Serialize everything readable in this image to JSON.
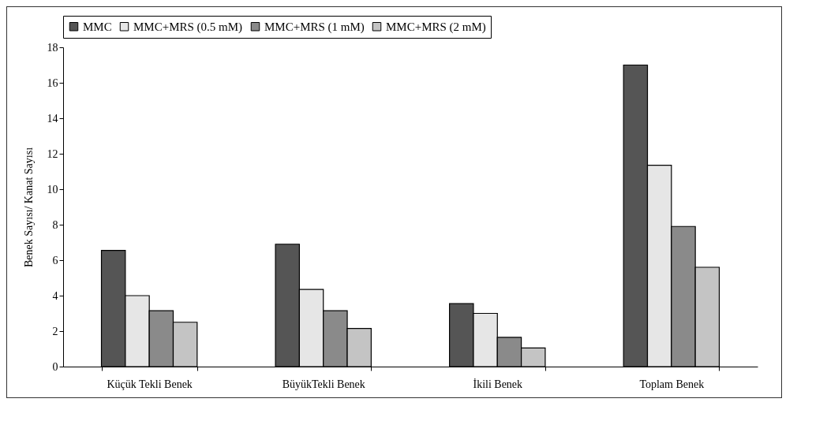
{
  "chart_data": {
    "type": "bar",
    "categories": [
      "Küçük Tekli Benek",
      "BüyükTekli Benek",
      "İkili Benek",
      "Toplam Benek"
    ],
    "ylabel": "Benek Sayısı/ Kanat Sayısı",
    "ylim": [
      0,
      18
    ],
    "yticks": [
      0,
      2,
      4,
      6,
      8,
      10,
      12,
      14,
      16,
      18
    ],
    "grid": false,
    "legend": "top",
    "series": [
      {
        "name": "MMC",
        "color": "#555555",
        "values": [
          6.55,
          6.9,
          3.55,
          17.0
        ]
      },
      {
        "name": "MMC+MRS (0.5 mM)",
        "color": "#e6e6e6",
        "values": [
          4.0,
          4.35,
          3.0,
          11.35
        ]
      },
      {
        "name": "MMC+MRS (1 mM)",
        "color": "#8a8a8a",
        "values": [
          3.15,
          3.15,
          1.65,
          7.9
        ]
      },
      {
        "name": "MMC+MRS (2 mM)",
        "color": "#c4c4c4",
        "values": [
          2.5,
          2.15,
          1.05,
          5.6
        ]
      }
    ]
  }
}
